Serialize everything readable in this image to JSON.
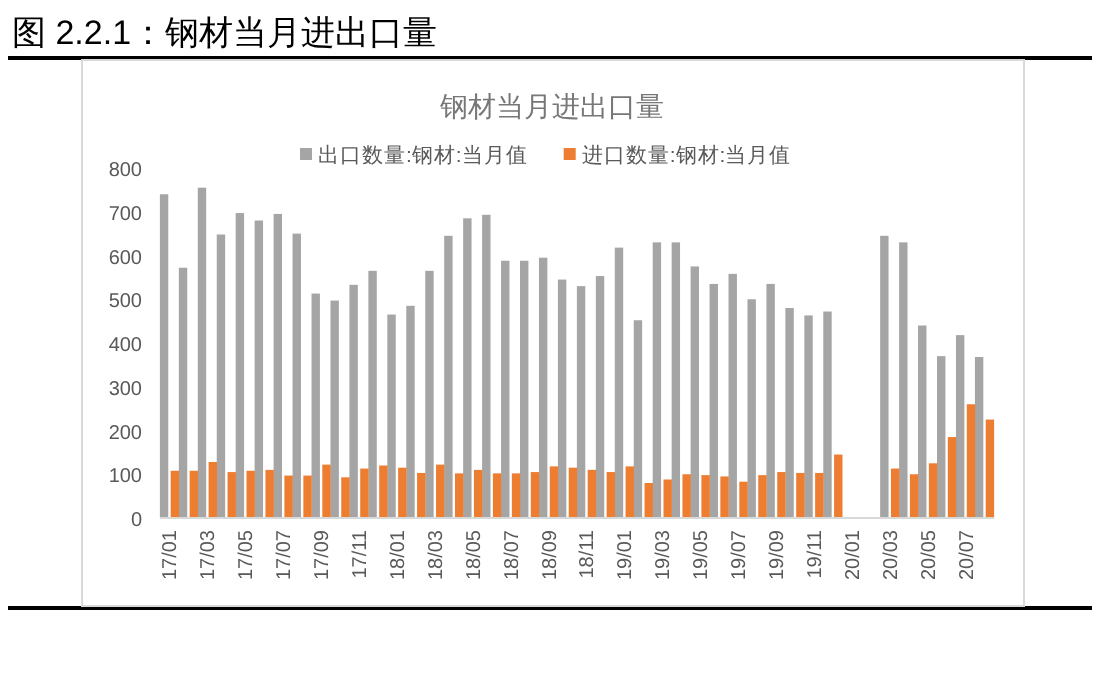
{
  "chart_data": {
    "type": "bar",
    "title": "图 2.2.1：钢材当月进出口量",
    "subtitle": "钢材当月进出口量",
    "categories": [
      "17/01",
      null,
      "17/03",
      null,
      "17/05",
      null,
      "17/07",
      null,
      "17/09",
      null,
      "17/11",
      null,
      "18/01",
      null,
      "18/03",
      null,
      "18/05",
      null,
      "18/07",
      null,
      "18/09",
      null,
      "18/11",
      null,
      "19/01",
      null,
      "19/03",
      null,
      "19/05",
      null,
      "19/07",
      null,
      "19/09",
      null,
      "19/11",
      null,
      "20/01",
      null,
      "20/03",
      null,
      "20/05",
      null,
      "20/07",
      null
    ],
    "series": [
      {
        "name": "出口数量:钢材:当月值",
        "color": "#a5a5a5",
        "values": [
          740,
          572,
          755,
          648,
          697,
          680,
          695,
          650,
          513,
          497,
          533,
          565,
          465,
          485,
          565,
          645,
          685,
          693,
          588,
          588,
          595,
          545,
          530,
          553,
          618,
          452,
          630,
          630,
          575,
          535,
          558,
          500,
          535,
          480,
          463,
          472,
          null,
          null,
          645,
          630,
          440,
          370,
          418,
          368
        ]
      },
      {
        "name": "进口数量:钢材:当月值",
        "color": "#ed7d31",
        "values": [
          108,
          108,
          128,
          105,
          108,
          110,
          97,
          97,
          122,
          93,
          113,
          120,
          115,
          103,
          122,
          102,
          110,
          102,
          102,
          105,
          118,
          115,
          110,
          105,
          118,
          80,
          88,
          100,
          98,
          95,
          83,
          98,
          105,
          103,
          103,
          145,
          null,
          null,
          113,
          100,
          125,
          185,
          260,
          225
        ]
      }
    ],
    "ylim": [
      0,
      800
    ],
    "yticks": [
      0,
      100,
      200,
      300,
      400,
      500,
      600,
      700,
      800
    ],
    "grid": false,
    "legend": "top"
  }
}
